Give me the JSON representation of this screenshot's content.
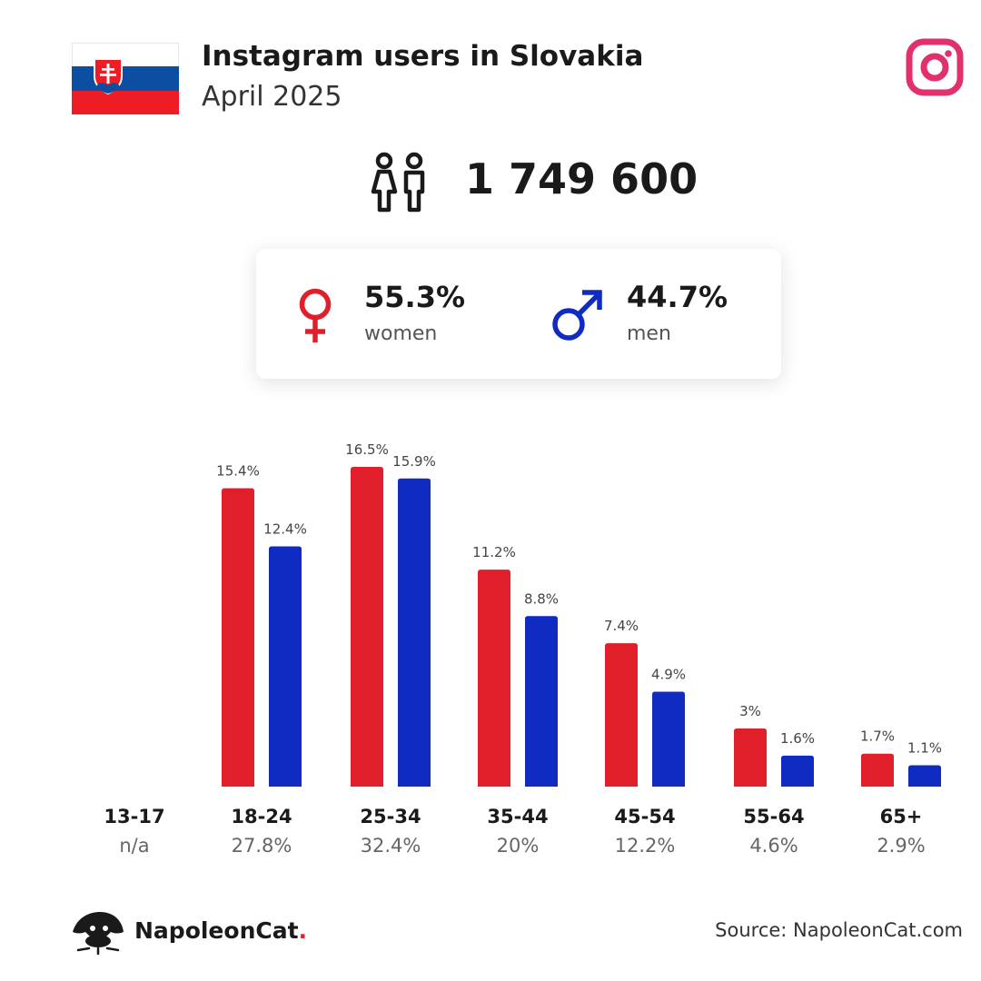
{
  "header": {
    "title": "Instagram users in Slovakia",
    "subtitle": "April 2025",
    "flag_icon": "slovakia-flag-icon",
    "brand_icon": "instagram-icon"
  },
  "summary": {
    "total_users": "1 749 600",
    "people_icon": "people-icon",
    "women": {
      "percent": "55.3%",
      "label": "women",
      "icon": "female-symbol-icon"
    },
    "men": {
      "percent": "44.7%",
      "label": "men",
      "icon": "male-symbol-icon"
    }
  },
  "colors": {
    "women": "#e01f2a",
    "men": "#0f2bc1",
    "instagram": "#e1306c"
  },
  "chart_data": {
    "type": "bar",
    "categories": [
      "13-17",
      "18-24",
      "25-34",
      "35-44",
      "45-54",
      "55-64",
      "65+"
    ],
    "totals": [
      "n/a",
      "27.8%",
      "32.4%",
      "20%",
      "12.2%",
      "4.6%",
      "2.9%"
    ],
    "series": [
      {
        "values": [
          null,
          15.4,
          16.5,
          11.2,
          7.4,
          3,
          1.7
        ],
        "labels": [
          "",
          "15.4%",
          "16.5%",
          "11.2%",
          "7.4%",
          "3%",
          "1.7%"
        ]
      },
      {
        "values": [
          null,
          12.4,
          15.9,
          8.8,
          4.9,
          1.6,
          1.1
        ],
        "labels": [
          "",
          "12.4%",
          "15.9%",
          "8.8%",
          "4.9%",
          "1.6%",
          "1.1%"
        ]
      }
    ],
    "ylim": [
      0,
      16.5
    ]
  },
  "footer": {
    "brand": "NapoleonCat",
    "brand_dot": ".",
    "source": "Source: NapoleonCat.com"
  }
}
